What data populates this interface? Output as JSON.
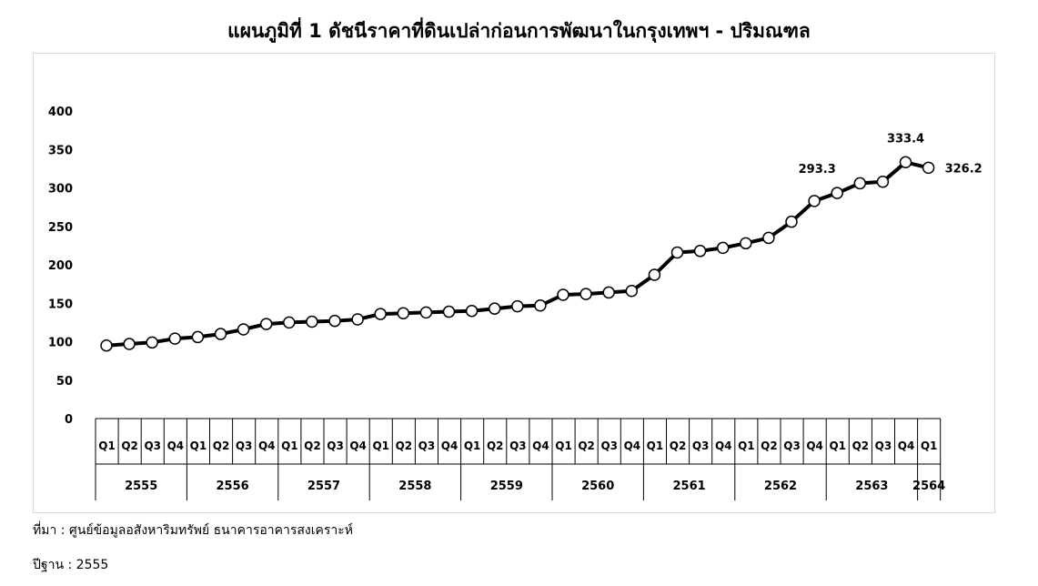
{
  "chart_data": {
    "type": "line",
    "title": "แผนภูมิที่ 1 ดัชนีราคาที่ดินเปล่าก่อนการพัฒนาในกรุงเทพฯ - ปริมณฑล",
    "ylim": [
      0,
      400
    ],
    "yticks": [
      0,
      50,
      100,
      150,
      200,
      250,
      300,
      350,
      400
    ],
    "grid": false,
    "quarter_labels": [
      "Q1",
      "Q2",
      "Q3",
      "Q4",
      "Q1",
      "Q2",
      "Q3",
      "Q4",
      "Q1",
      "Q2",
      "Q3",
      "Q4",
      "Q1",
      "Q2",
      "Q3",
      "Q4",
      "Q1",
      "Q2",
      "Q3",
      "Q4",
      "Q1",
      "Q2",
      "Q3",
      "Q4",
      "Q1",
      "Q2",
      "Q3",
      "Q4",
      "Q1",
      "Q2",
      "Q3",
      "Q4",
      "Q1",
      "Q2",
      "Q3",
      "Q4",
      "Q1"
    ],
    "years": [
      {
        "label": "2555",
        "quarters": 4
      },
      {
        "label": "2556",
        "quarters": 4
      },
      {
        "label": "2557",
        "quarters": 4
      },
      {
        "label": "2558",
        "quarters": 4
      },
      {
        "label": "2559",
        "quarters": 4
      },
      {
        "label": "2560",
        "quarters": 4
      },
      {
        "label": "2561",
        "quarters": 4
      },
      {
        "label": "2562",
        "quarters": 4
      },
      {
        "label": "2563",
        "quarters": 4
      },
      {
        "label": "2564",
        "quarters": 1
      }
    ],
    "values": [
      95,
      97,
      99,
      104,
      106,
      110,
      116,
      123,
      125,
      126,
      127,
      129,
      136,
      137,
      138,
      139,
      140,
      143,
      146,
      147,
      161,
      162,
      164,
      166,
      187,
      216,
      218,
      222,
      228,
      235,
      256,
      283,
      293.3,
      306,
      308,
      333.4,
      326.2
    ],
    "data_labels": [
      {
        "index": 32,
        "text": "293.3"
      },
      {
        "index": 35,
        "text": "333.4"
      },
      {
        "index": 36,
        "text": "326.2"
      }
    ],
    "line_color": "#000000",
    "marker_fill": "#ffffff"
  },
  "footer": {
    "source": "ที่มา : ศูนย์ข้อมูลอสังหาริมทรัพย์ ธนาคารอาคารสงเคราะห์",
    "base_year": "ปีฐาน : 2555"
  }
}
